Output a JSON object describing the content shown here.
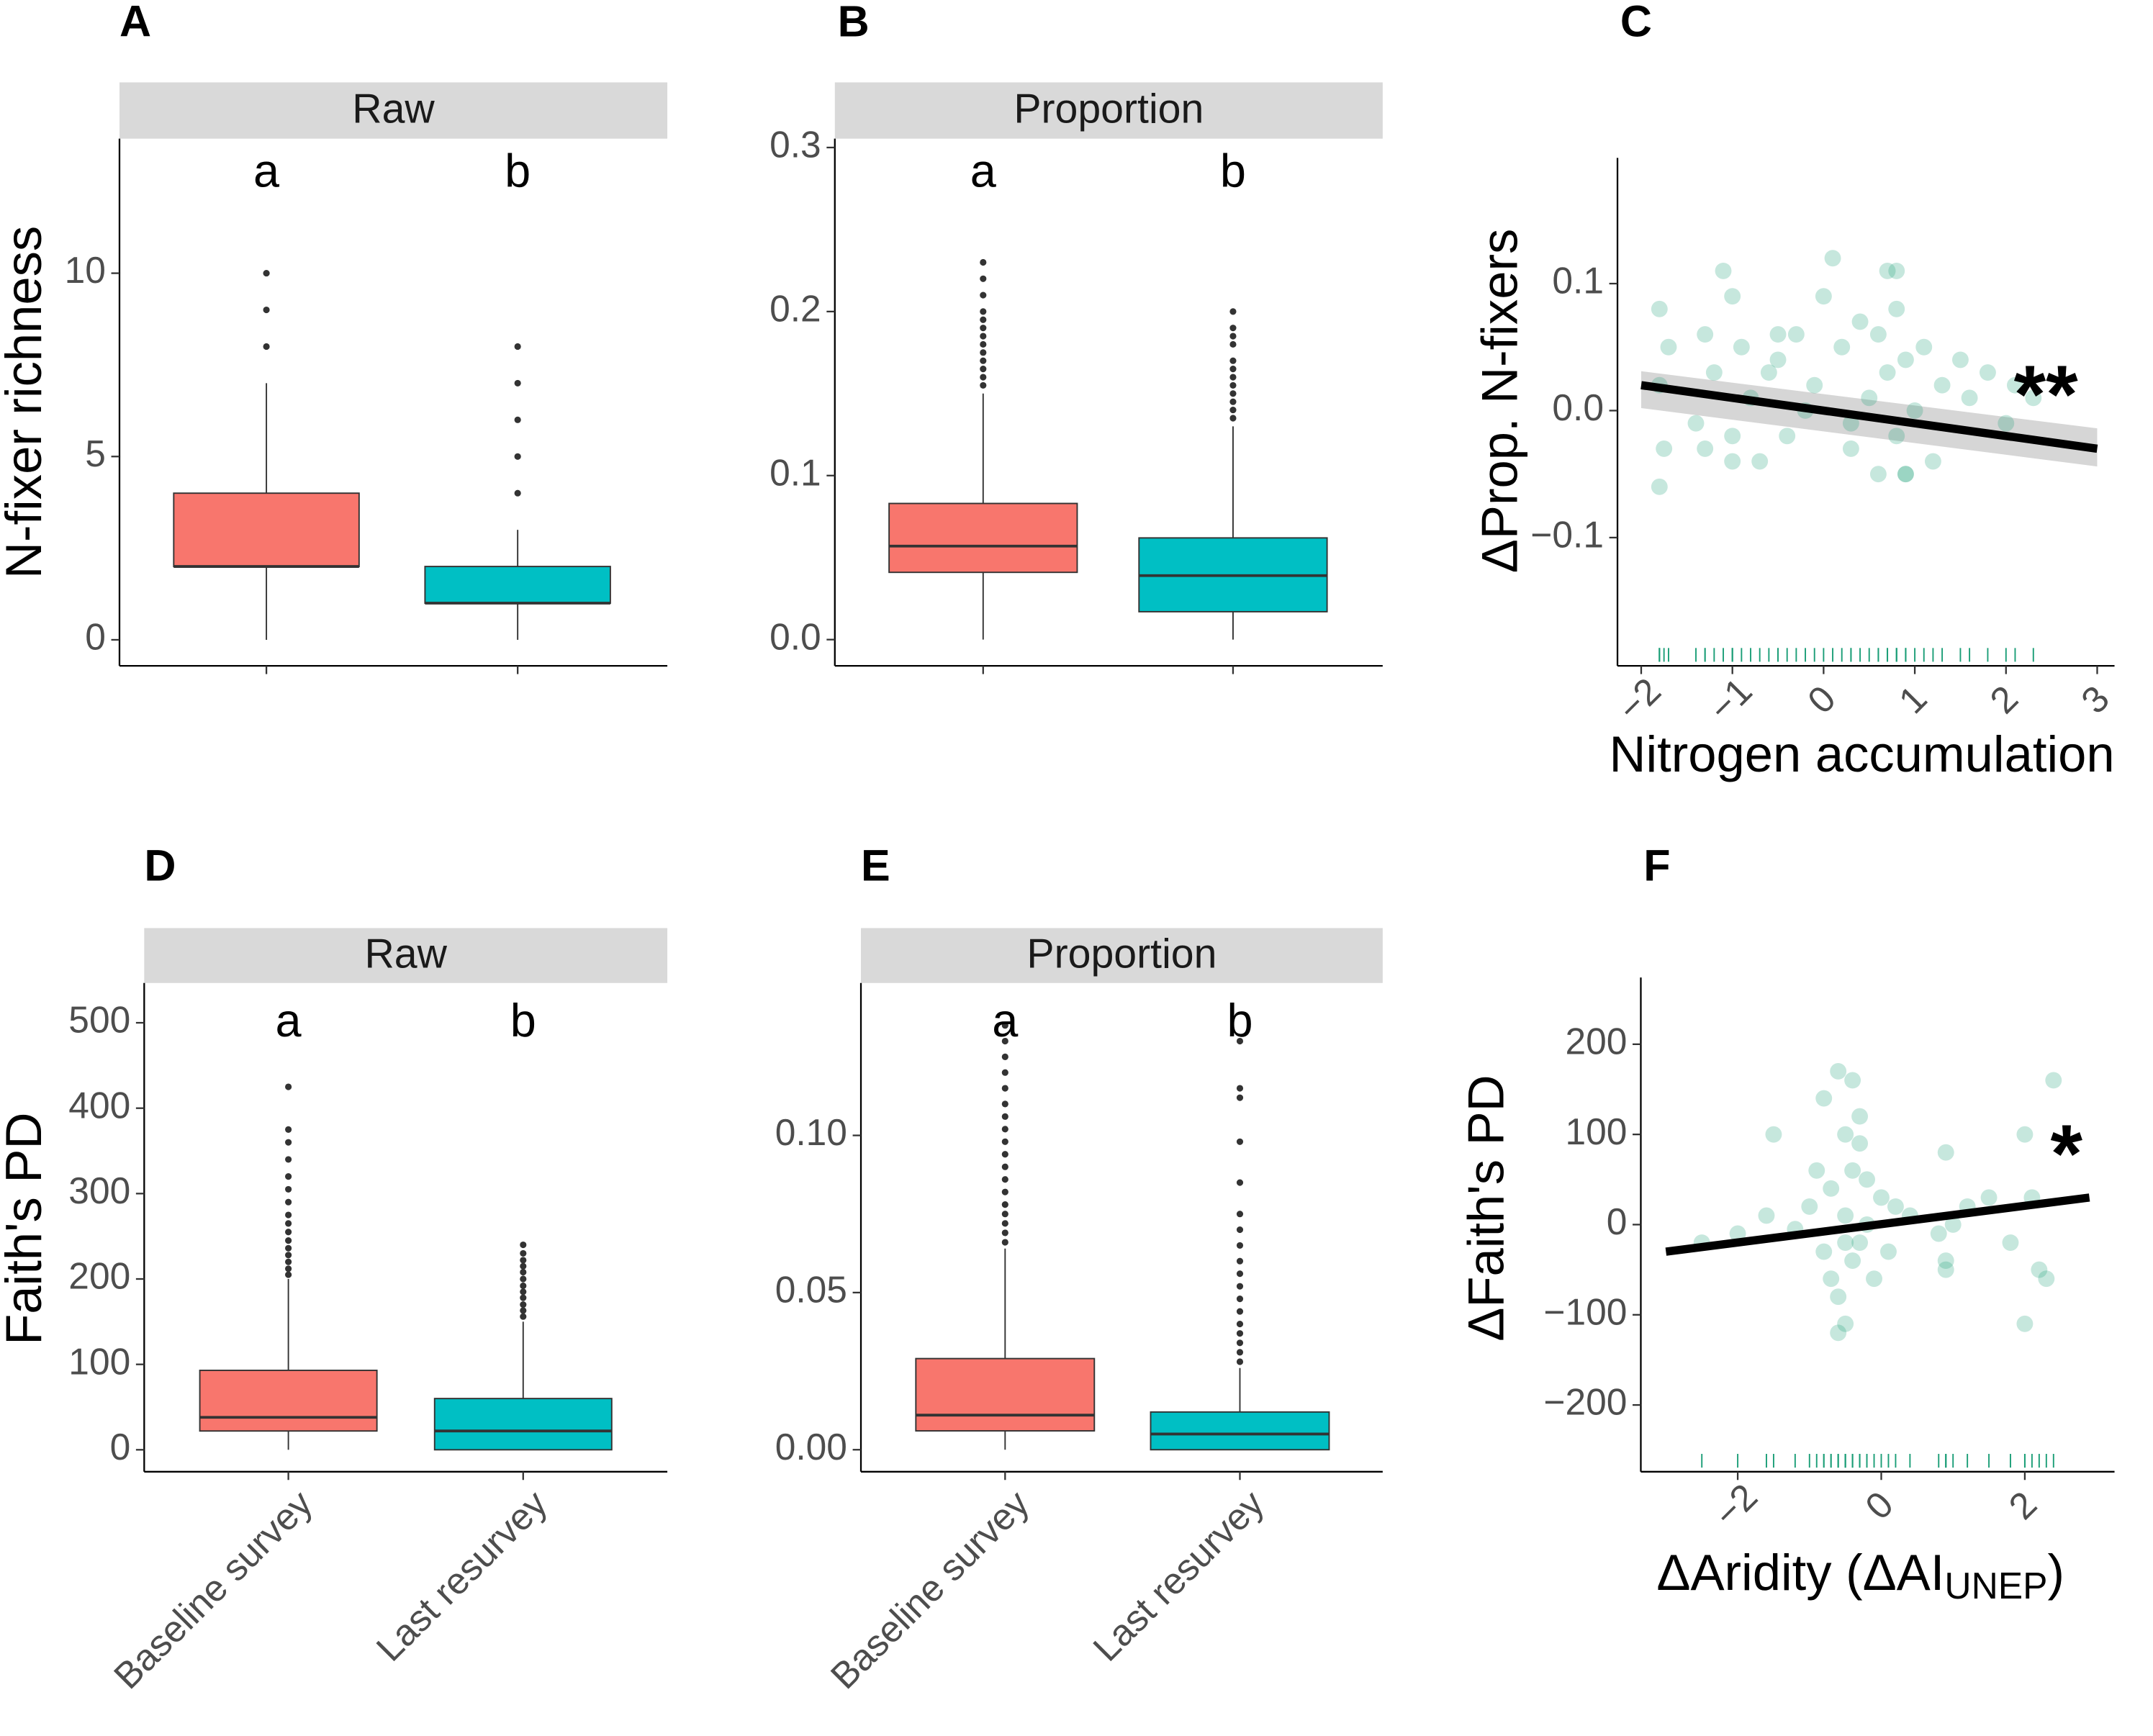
{
  "chart_data": [
    {
      "type": "box",
      "label": "A",
      "strip": "Raw",
      "ylabel": "N-fixer richness",
      "group_labels": [
        "a",
        "b"
      ],
      "ylim": [
        -0.71,
        13.67
      ],
      "yticks": [
        0,
        5,
        10
      ],
      "boxes": [
        {
          "color": "#f8766d",
          "min": 0,
          "q1": 2,
          "median": 2,
          "q3": 4,
          "max": 7,
          "outliers": [
            8,
            9,
            10
          ]
        },
        {
          "color": "#00bfc4",
          "min": 0,
          "q1": 1,
          "median": 1,
          "q3": 2,
          "max": 3,
          "outliers": [
            4,
            5,
            6,
            7,
            8
          ]
        }
      ]
    },
    {
      "type": "box",
      "label": "B",
      "strip": "Proportion",
      "group_labels": [
        "a",
        "b"
      ],
      "ylim": [
        -0.016,
        0.3054
      ],
      "yticks": [
        {
          "value": 0,
          "label": "0.0"
        },
        0.1,
        0.2,
        0.3
      ],
      "boxes": [
        {
          "color": "#f8766d",
          "min": 0,
          "q1": 0.041,
          "median": 0.057,
          "q3": 0.083,
          "max": 0.15,
          "outliers": [
            0.155,
            0.16,
            0.165,
            0.17,
            0.175,
            0.18,
            0.185,
            0.19,
            0.195,
            0.2,
            0.21,
            0.22,
            0.23
          ]
        },
        {
          "color": "#00bfc4",
          "min": 0,
          "q1": 0.017,
          "median": 0.039,
          "q3": 0.062,
          "max": 0.13,
          "outliers": [
            0.135,
            0.14,
            0.145,
            0.15,
            0.155,
            0.16,
            0.165,
            0.17,
            0.18,
            0.185,
            0.19,
            0.2
          ]
        }
      ]
    },
    {
      "type": "scatter",
      "label": "C",
      "ylabel": "ΔProp. N-fixers",
      "xlabel": {
        "text": "Nitrogen accumulation"
      },
      "color": "#1b9e77",
      "opacity": 0.25,
      "rug": true,
      "annotation": "**",
      "xlim": [
        -2.26,
        3.19
      ],
      "ylim": [
        -0.201,
        0.199
      ],
      "xticks": [
        {
          "value": -2,
          "label": "−2"
        },
        {
          "value": -1,
          "label": "−1"
        },
        0,
        1,
        2,
        3
      ],
      "yticks": [
        0.1,
        {
          "value": 0,
          "label": "0.0"
        },
        {
          "value": -0.1,
          "label": "−0.1"
        }
      ],
      "x": [
        -1.8,
        -1.8,
        -1.8,
        -1.75,
        -1.7,
        -1.4,
        -1.3,
        -1.3,
        -1.2,
        -1.1,
        -1.0,
        -1.0,
        -0.9,
        -0.8,
        -0.7,
        -0.6,
        -0.5,
        -0.4,
        -0.3,
        -0.2,
        -0.1,
        0.0,
        0.1,
        0.2,
        0.3,
        0.4,
        0.5,
        0.6,
        0.6,
        0.7,
        0.7,
        0.8,
        0.8,
        0.9,
        0.9,
        1.0,
        1.1,
        1.2,
        1.3,
        1.5,
        1.6,
        1.8,
        2.0,
        2.1,
        2.3,
        0.8,
        -1.0,
        0.9,
        -0.5,
        0.3
      ],
      "y": [
        0.08,
        0.02,
        -0.06,
        -0.03,
        0.05,
        -0.01,
        0.06,
        -0.03,
        0.03,
        0.11,
        0.09,
        -0.02,
        0.05,
        0.01,
        -0.04,
        0.03,
        0.04,
        -0.02,
        0.06,
        0.0,
        0.02,
        0.09,
        0.12,
        0.05,
        -0.03,
        0.07,
        0.01,
        0.06,
        -0.05,
        0.11,
        0.03,
        -0.02,
        0.08,
        0.04,
        -0.05,
        0.0,
        0.05,
        -0.04,
        0.02,
        0.04,
        0.01,
        0.03,
        -0.01,
        0.02,
        0.01,
        0.11,
        -0.04,
        -0.05,
        0.06,
        -0.01
      ],
      "trend": {
        "x": [
          -2,
          3
        ],
        "y": [
          0.02,
          -0.03
        ],
        "ci_lower": [
          0.002,
          -0.044
        ],
        "ci_upper": [
          0.031,
          -0.014
        ]
      }
    },
    {
      "type": "box",
      "label": "D",
      "strip": "Raw",
      "ylabel": "Faith's PD",
      "group_labels": [
        "a",
        "b"
      ],
      "categories": [
        "Baseline survey",
        "Last resurvey"
      ],
      "ylim": [
        -25.7,
        546.6
      ],
      "yticks": [
        0,
        100,
        200,
        300,
        400,
        500
      ],
      "boxes": [
        {
          "color": "#f8766d",
          "min": 0,
          "q1": 22,
          "median": 38,
          "q3": 93,
          "max": 200,
          "outliers": [
            205,
            212,
            220,
            228,
            236,
            245,
            255,
            265,
            275,
            290,
            305,
            320,
            340,
            360,
            375,
            425
          ]
        },
        {
          "color": "#00bfc4",
          "min": 0,
          "q1": 0,
          "median": 22,
          "q3": 60,
          "max": 150,
          "outliers": [
            156,
            163,
            170,
            178,
            185,
            192,
            200,
            208,
            215,
            222,
            230,
            240
          ]
        }
      ]
    },
    {
      "type": "box",
      "label": "E",
      "strip": "Proportion",
      "group_labels": [
        "a",
        "b"
      ],
      "categories": [
        "Baseline survey",
        "Last resurvey"
      ],
      "ylim": [
        -0.007,
        0.1485
      ],
      "yticks": [
        {
          "value": 0,
          "label": "0.00"
        },
        0.05,
        {
          "value": 0.1,
          "label": "0.10"
        }
      ],
      "boxes": [
        {
          "color": "#f8766d",
          "min": 0,
          "q1": 0.006,
          "median": 0.011,
          "q3": 0.029,
          "max": 0.064,
          "outliers": [
            0.066,
            0.069,
            0.072,
            0.075,
            0.078,
            0.082,
            0.086,
            0.09,
            0.094,
            0.098,
            0.102,
            0.106,
            0.11,
            0.115,
            0.12,
            0.125,
            0.13,
            0.135
          ]
        },
        {
          "color": "#00bfc4",
          "min": 0,
          "q1": 0,
          "median": 0.005,
          "q3": 0.012,
          "max": 0.026,
          "outliers": [
            0.028,
            0.031,
            0.034,
            0.037,
            0.04,
            0.044,
            0.048,
            0.052,
            0.056,
            0.06,
            0.065,
            0.07,
            0.075,
            0.085,
            0.098,
            0.112,
            0.115,
            0.13
          ]
        }
      ]
    },
    {
      "type": "scatter",
      "label": "F",
      "ylabel": "ΔFaith's PD",
      "xlabel": {
        "text": "ΔAridity (ΔAI",
        "sub": "UNEP",
        "suffix": ")"
      },
      "color": "#1b9e77",
      "opacity": 0.25,
      "rug": true,
      "annotation": "*",
      "xlim": [
        -3.35,
        3.25
      ],
      "ylim": [
        -274,
        274
      ],
      "xticks": [
        {
          "value": -2,
          "label": "−2"
        },
        0,
        2
      ],
      "yticks": [
        200,
        100,
        0,
        {
          "value": -100,
          "label": "−100"
        },
        {
          "value": -200,
          "label": "−200"
        }
      ],
      "x": [
        -2.5,
        -2.0,
        -1.5,
        -1.2,
        -1.0,
        -0.9,
        -0.8,
        -0.8,
        -0.7,
        -0.7,
        -0.6,
        -0.6,
        -0.5,
        -0.5,
        -0.5,
        -0.4,
        -0.4,
        -0.3,
        -0.3,
        -0.2,
        -0.2,
        -0.1,
        0.0,
        0.1,
        0.2,
        0.4,
        0.8,
        0.9,
        0.9,
        1.0,
        1.2,
        1.5,
        1.8,
        2.0,
        2.1,
        2.2,
        2.3,
        2.4,
        -0.6,
        -0.4,
        -1.6,
        -0.3,
        0.9,
        2.0,
        -0.5
      ],
      "y": [
        -20,
        -10,
        100,
        -5,
        20,
        60,
        -30,
        140,
        40,
        -60,
        170,
        -80,
        100,
        10,
        -110,
        160,
        -40,
        120,
        -20,
        50,
        0,
        -60,
        30,
        -30,
        20,
        10,
        -10,
        80,
        -40,
        0,
        20,
        30,
        -20,
        100,
        30,
        -50,
        -60,
        160,
        -120,
        60,
        10,
        90,
        -50,
        -110,
        -20
      ],
      "trend": {
        "x": [
          -3,
          2.9
        ],
        "y": [
          -30,
          30
        ]
      }
    }
  ]
}
